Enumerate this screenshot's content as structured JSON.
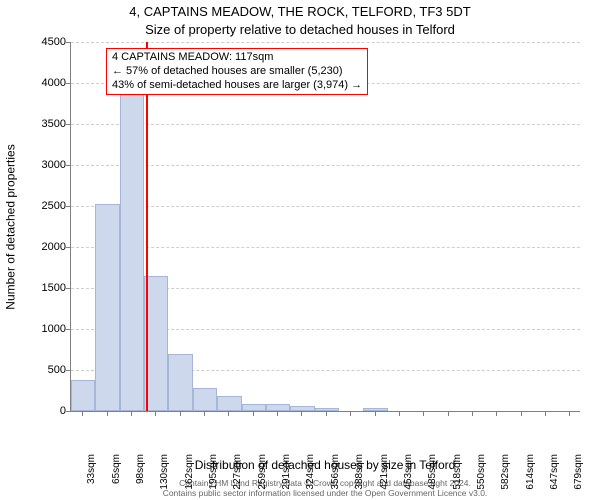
{
  "title": "4, CAPTAINS MEADOW, THE ROCK, TELFORD, TF3 5DT",
  "subtitle": "Size of property relative to detached houses in Telford",
  "ylabel": "Number of detached properties",
  "xlabel": "Distribution of detached houses by size in Telford",
  "footer_line1": "Contains HM Land Registry data © Crown copyright and database right 2024.",
  "footer_line2": "Contains public sector information licensed under the Open Government Licence v3.0.",
  "annotation": {
    "line1": "4 CAPTAINS MEADOW: 117sqm",
    "line2": "← 57% of detached houses are smaller (5,230)",
    "line3": "43% of semi-detached houses are larger (3,974) →"
  },
  "chart": {
    "type": "histogram",
    "ylim": [
      0,
      4500
    ],
    "ytick_step": 500,
    "yticks": [
      0,
      500,
      1000,
      1500,
      2000,
      2500,
      3000,
      3500,
      4000,
      4500
    ],
    "x_bin_width_sqm": 32.5,
    "x_start_sqm": 16.5,
    "x_end_sqm": 695.5,
    "xtick_labels": [
      "33sqm",
      "65sqm",
      "98sqm",
      "130sqm",
      "162sqm",
      "195sqm",
      "227sqm",
      "259sqm",
      "291sqm",
      "324sqm",
      "356sqm",
      "388sqm",
      "421sqm",
      "453sqm",
      "485sqm",
      "518sqm",
      "550sqm",
      "582sqm",
      "614sqm",
      "647sqm",
      "679sqm"
    ],
    "values": [
      380,
      2520,
      4100,
      1650,
      700,
      280,
      180,
      90,
      80,
      60,
      40,
      0,
      40,
      0,
      0,
      0,
      0,
      0,
      0,
      0,
      0
    ],
    "bar_fill": "#cdd8ec",
    "bar_stroke": "#a5b6d6",
    "grid_color": "#cfcfcf",
    "axis_color": "#808080",
    "marker_color": "#ff0000",
    "marker_value_sqm": 117,
    "background": "#ffffff",
    "title_fontsize": 13,
    "label_fontsize": 12,
    "tick_fontsize": 11,
    "xtick_fontsize": 10,
    "annot_fontsize": 11,
    "footer_fontsize": 8.5
  }
}
